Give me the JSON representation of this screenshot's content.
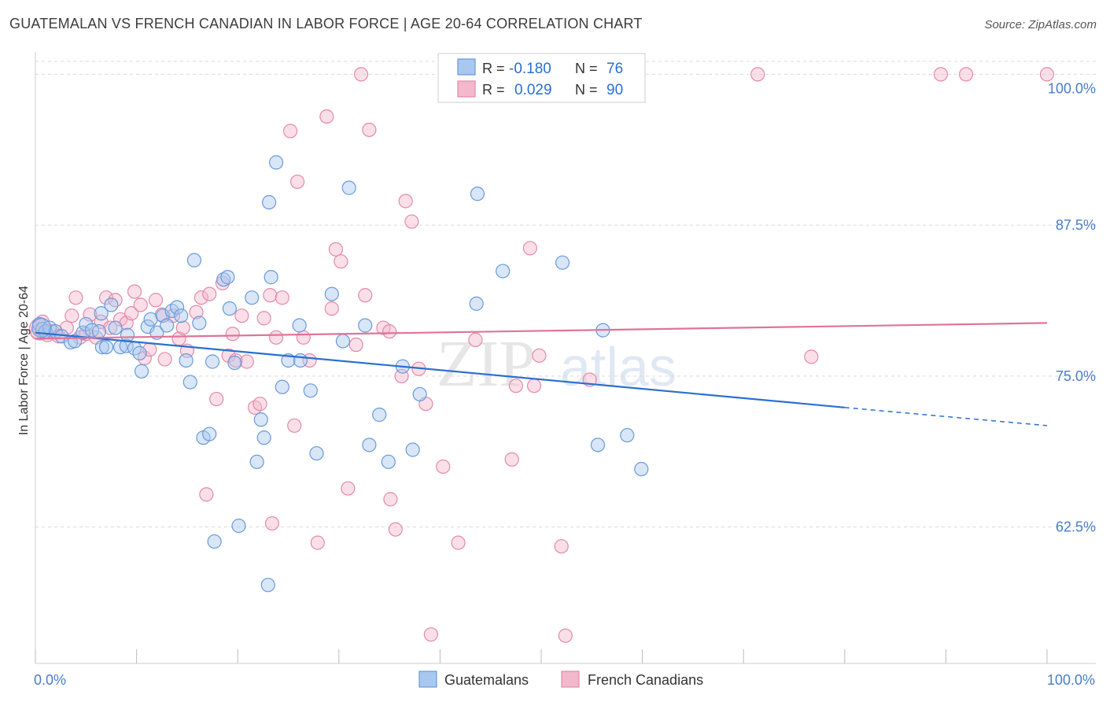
{
  "title": "GUATEMALAN VS FRENCH CANADIAN IN LABOR FORCE | AGE 20-64 CORRELATION CHART",
  "source": "Source: ZipAtlas.com",
  "watermark": {
    "zip": "ZIP",
    "atlas": "atlas"
  },
  "legend_box": {
    "rows": [
      {
        "r_label": "R =",
        "r_value": "-0.180",
        "n_label": "N =",
        "n_value": "76"
      },
      {
        "r_label": "R =",
        "r_value": "0.029",
        "n_label": "N =",
        "n_value": "90"
      }
    ]
  },
  "colors": {
    "blue_fill": "#a8c8f0",
    "blue_stroke": "#6a9ad8",
    "blue_line": "#2a6fd0",
    "pink_fill": "#f4b8cc",
    "pink_stroke": "#e38aa8",
    "pink_line": "#e0739a",
    "tick_label": "#4a7cc9",
    "grid": "#d9d9d9"
  },
  "chart_data": {
    "type": "scatter",
    "title": "GUATEMALAN VS FRENCH CANADIAN IN LABOR FORCE | AGE 20-64 CORRELATION CHART",
    "xlabel": "",
    "ylabel": "In Labor Force | Age 20-64",
    "xlim": [
      0,
      100
    ],
    "ylim": [
      51.2,
      101.2
    ],
    "x_tick_labels": [
      "0.0%",
      "100.0%"
    ],
    "y_ticks": [
      62.5,
      75.0,
      87.5,
      100.0
    ],
    "y_tick_labels": [
      "62.5%",
      "75.0%",
      "87.5%",
      "100.0%"
    ],
    "grid": true,
    "legend_position": "bottom-center",
    "series": [
      {
        "name": "Guatemalans",
        "color": "#a8c8f0",
        "trend": {
          "x": [
            0,
            80
          ],
          "y": [
            78.6,
            72.4
          ],
          "dashed_to_x": 100,
          "dashed_to_y": 70.9
        },
        "points": [
          [
            0.4,
            79.3
          ],
          [
            0.7,
            78.9
          ],
          [
            1.0,
            78.7
          ],
          [
            1.4,
            79.0
          ],
          [
            2.0,
            78.7
          ],
          [
            2.6,
            78.3
          ],
          [
            3.5,
            77.8
          ],
          [
            3.9,
            77.9
          ],
          [
            4.7,
            78.6
          ],
          [
            5.0,
            79.3
          ],
          [
            5.6,
            78.8
          ],
          [
            6.3,
            78.7
          ],
          [
            6.5,
            80.2
          ],
          [
            6.6,
            77.4
          ],
          [
            7.0,
            77.4
          ],
          [
            7.5,
            80.9
          ],
          [
            7.9,
            79.0
          ],
          [
            8.4,
            77.4
          ],
          [
            9.0,
            77.5
          ],
          [
            9.1,
            78.4
          ],
          [
            9.8,
            77.3
          ],
          [
            10.3,
            76.9
          ],
          [
            10.5,
            75.4
          ],
          [
            11.1,
            79.1
          ],
          [
            11.4,
            79.7
          ],
          [
            12.0,
            78.6
          ],
          [
            12.6,
            80.0
          ],
          [
            13.0,
            79.2
          ],
          [
            13.5,
            80.4
          ],
          [
            14.0,
            80.7
          ],
          [
            14.4,
            80.0
          ],
          [
            14.9,
            76.3
          ],
          [
            15.3,
            74.5
          ],
          [
            15.7,
            84.6
          ],
          [
            16.2,
            79.4
          ],
          [
            16.6,
            69.9
          ],
          [
            17.2,
            70.2
          ],
          [
            17.5,
            76.2
          ],
          [
            17.7,
            61.3
          ],
          [
            18.6,
            83.0
          ],
          [
            19.0,
            83.2
          ],
          [
            19.2,
            80.6
          ],
          [
            19.7,
            76.1
          ],
          [
            20.1,
            62.6
          ],
          [
            21.4,
            81.5
          ],
          [
            21.9,
            67.9
          ],
          [
            22.3,
            71.4
          ],
          [
            22.6,
            69.9
          ],
          [
            23.1,
            89.4
          ],
          [
            23.3,
            83.2
          ],
          [
            23.8,
            92.7
          ],
          [
            24.4,
            74.1
          ],
          [
            25.0,
            76.3
          ],
          [
            26.1,
            79.2
          ],
          [
            26.2,
            76.3
          ],
          [
            27.2,
            73.8
          ],
          [
            27.8,
            68.6
          ],
          [
            29.3,
            81.8
          ],
          [
            30.4,
            77.9
          ],
          [
            31.0,
            90.6
          ],
          [
            32.6,
            79.2
          ],
          [
            33.0,
            69.3
          ],
          [
            34.0,
            71.8
          ],
          [
            34.9,
            67.9
          ],
          [
            36.3,
            75.8
          ],
          [
            37.3,
            68.9
          ],
          [
            38.0,
            73.5
          ],
          [
            43.6,
            81.0
          ],
          [
            43.7,
            90.1
          ],
          [
            46.2,
            83.7
          ],
          [
            52.1,
            84.4
          ],
          [
            55.6,
            69.3
          ],
          [
            56.1,
            78.8
          ],
          [
            58.5,
            70.1
          ],
          [
            59.9,
            67.3
          ],
          [
            23.0,
            57.7
          ]
        ]
      },
      {
        "name": "French Canadians",
        "color": "#f4b8cc",
        "trend": {
          "x": [
            0,
            100
          ],
          "y": [
            78.1,
            79.4
          ]
        },
        "points": [
          [
            0.2,
            78.6
          ],
          [
            0.5,
            78.9
          ],
          [
            0.7,
            79.5
          ],
          [
            1.2,
            78.4
          ],
          [
            1.7,
            78.7
          ],
          [
            2.3,
            78.3
          ],
          [
            3.1,
            79.0
          ],
          [
            3.6,
            80.0
          ],
          [
            4.0,
            81.5
          ],
          [
            4.4,
            78.2
          ],
          [
            5.0,
            78.5
          ],
          [
            5.4,
            80.1
          ],
          [
            6.0,
            78.2
          ],
          [
            6.5,
            79.5
          ],
          [
            7.0,
            81.5
          ],
          [
            7.4,
            79.0
          ],
          [
            7.9,
            81.3
          ],
          [
            8.4,
            79.7
          ],
          [
            9.0,
            79.4
          ],
          [
            9.5,
            80.2
          ],
          [
            9.8,
            82.0
          ],
          [
            10.4,
            80.9
          ],
          [
            10.8,
            76.5
          ],
          [
            11.3,
            77.2
          ],
          [
            11.9,
            81.3
          ],
          [
            12.5,
            80.1
          ],
          [
            12.8,
            76.4
          ],
          [
            13.6,
            80.0
          ],
          [
            14.2,
            78.1
          ],
          [
            14.6,
            79.0
          ],
          [
            15.0,
            77.1
          ],
          [
            15.9,
            80.3
          ],
          [
            16.4,
            81.5
          ],
          [
            16.9,
            65.2
          ],
          [
            17.2,
            81.8
          ],
          [
            17.9,
            73.1
          ],
          [
            18.5,
            82.7
          ],
          [
            19.1,
            76.7
          ],
          [
            19.5,
            78.5
          ],
          [
            19.8,
            76.3
          ],
          [
            20.4,
            80.0
          ],
          [
            20.9,
            76.2
          ],
          [
            21.7,
            72.4
          ],
          [
            22.2,
            72.7
          ],
          [
            22.6,
            79.8
          ],
          [
            23.2,
            81.7
          ],
          [
            23.4,
            62.8
          ],
          [
            23.8,
            78.2
          ],
          [
            24.4,
            81.5
          ],
          [
            25.2,
            95.3
          ],
          [
            25.6,
            70.9
          ],
          [
            25.9,
            91.1
          ],
          [
            26.5,
            78.2
          ],
          [
            27.1,
            76.3
          ],
          [
            27.9,
            61.2
          ],
          [
            28.8,
            96.5
          ],
          [
            29.3,
            80.6
          ],
          [
            29.7,
            85.5
          ],
          [
            30.2,
            84.5
          ],
          [
            30.9,
            65.7
          ],
          [
            31.7,
            77.6
          ],
          [
            32.2,
            100.0
          ],
          [
            32.6,
            81.7
          ],
          [
            33.0,
            95.4
          ],
          [
            34.4,
            79.0
          ],
          [
            35.0,
            78.7
          ],
          [
            35.1,
            64.8
          ],
          [
            35.6,
            62.3
          ],
          [
            36.2,
            75.0
          ],
          [
            36.6,
            89.5
          ],
          [
            37.2,
            87.8
          ],
          [
            37.9,
            75.6
          ],
          [
            38.6,
            72.7
          ],
          [
            39.1,
            53.6
          ],
          [
            40.3,
            67.5
          ],
          [
            41.8,
            61.2
          ],
          [
            43.5,
            78.0
          ],
          [
            47.1,
            68.1
          ],
          [
            47.5,
            74.2
          ],
          [
            48.9,
            85.6
          ],
          [
            49.3,
            74.2
          ],
          [
            49.8,
            76.7
          ],
          [
            52.0,
            60.9
          ],
          [
            52.4,
            53.5
          ],
          [
            54.8,
            74.7
          ],
          [
            71.4,
            100.0
          ],
          [
            76.7,
            76.6
          ],
          [
            89.5,
            100.0
          ],
          [
            92.0,
            100.0
          ],
          [
            100.0,
            100.0
          ]
        ]
      }
    ]
  },
  "bottom_legend": [
    {
      "label": "Guatemalans"
    },
    {
      "label": "French Canadians"
    }
  ]
}
